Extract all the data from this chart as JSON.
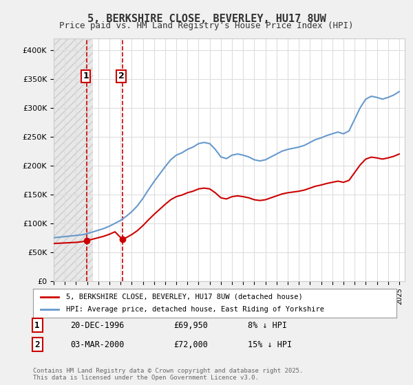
{
  "title1": "5, BERKSHIRE CLOSE, BEVERLEY, HU17 8UW",
  "title2": "Price paid vs. HM Land Registry's House Price Index (HPI)",
  "legend_house": "5, BERKSHIRE CLOSE, BEVERLEY, HU17 8UW (detached house)",
  "legend_hpi": "HPI: Average price, detached house, East Riding of Yorkshire",
  "transaction1_label": "1",
  "transaction1_date": "20-DEC-1996",
  "transaction1_price": "£69,950",
  "transaction1_hpi": "8% ↓ HPI",
  "transaction1_year": 1996.97,
  "transaction1_value": 69950,
  "transaction2_label": "2",
  "transaction2_date": "03-MAR-2000",
  "transaction2_price": "£72,000",
  "transaction2_hpi": "15% ↓ HPI",
  "transaction2_year": 2000.17,
  "transaction2_value": 72000,
  "footer": "Contains HM Land Registry data © Crown copyright and database right 2025.\nThis data is licensed under the Open Government Licence v3.0.",
  "ylim": [
    0,
    420000
  ],
  "xlim_start": 1994.0,
  "xlim_end": 2025.5,
  "bg_color": "#f0f0f0",
  "plot_bg_color": "#ffffff",
  "hatch_color": "#d0d0d0",
  "hatch_end_year": 1997.5,
  "red_line_color": "#cc0000",
  "blue_line_color": "#6699cc",
  "vline1_color": "#cc0000",
  "vline2_color": "#cc0000"
}
